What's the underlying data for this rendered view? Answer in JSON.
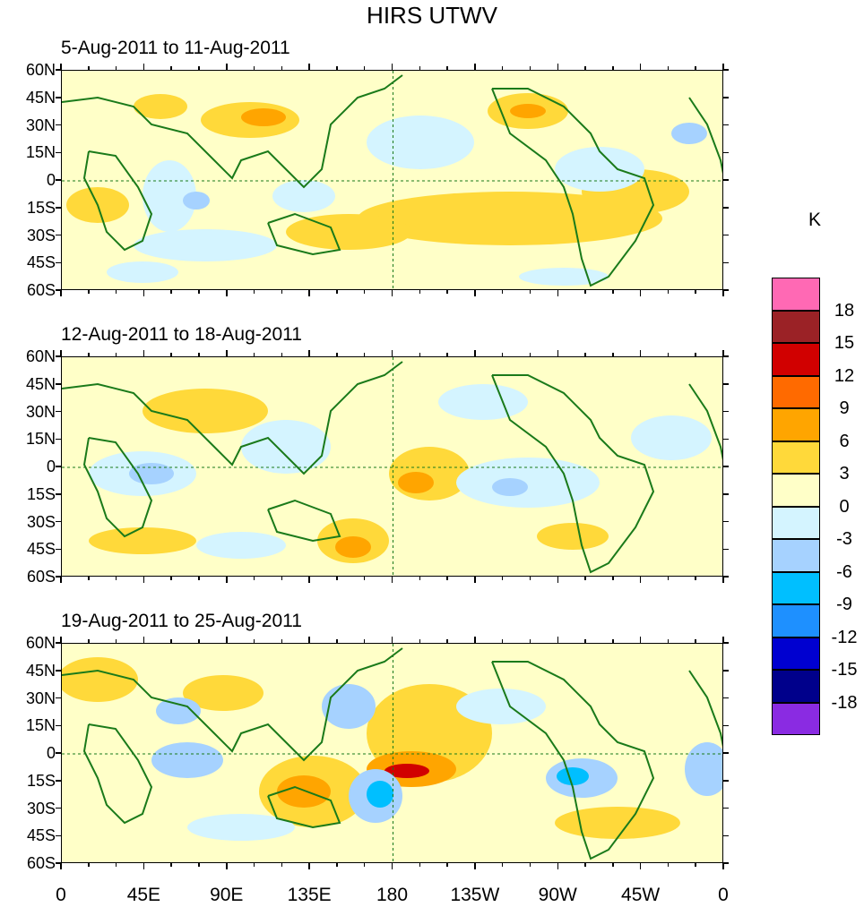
{
  "title": "HIRS UTWV",
  "panels": [
    {
      "title": "5-Aug-2011 to 11-Aug-2011"
    },
    {
      "title": "12-Aug-2011 to 18-Aug-2011"
    },
    {
      "title": "19-Aug-2011 to 25-Aug-2011"
    }
  ],
  "lat_labels": [
    "60N",
    "45N",
    "30N",
    "15N",
    "0",
    "15S",
    "30S",
    "45S",
    "60S"
  ],
  "lon_labels": [
    "0",
    "45E",
    "90E",
    "135E",
    "180",
    "135W",
    "90W",
    "45W",
    "0"
  ],
  "colorbar": {
    "unit": "K",
    "labels": [
      "18",
      "15",
      "12",
      "9",
      "6",
      "3",
      "0",
      "-3",
      "-6",
      "-9",
      "-12",
      "-15",
      "-18"
    ],
    "colors": [
      "#ff69b4",
      "#9b2226",
      "#d10000",
      "#ff6a00",
      "#ffa500",
      "#ffd93a",
      "#ffffc8",
      "#d4f4ff",
      "#a6d2ff",
      "#00bfff",
      "#1e90ff",
      "#0000d0",
      "#00008b",
      "#8a2be2"
    ]
  },
  "coast_color": "#1a7a1a"
}
